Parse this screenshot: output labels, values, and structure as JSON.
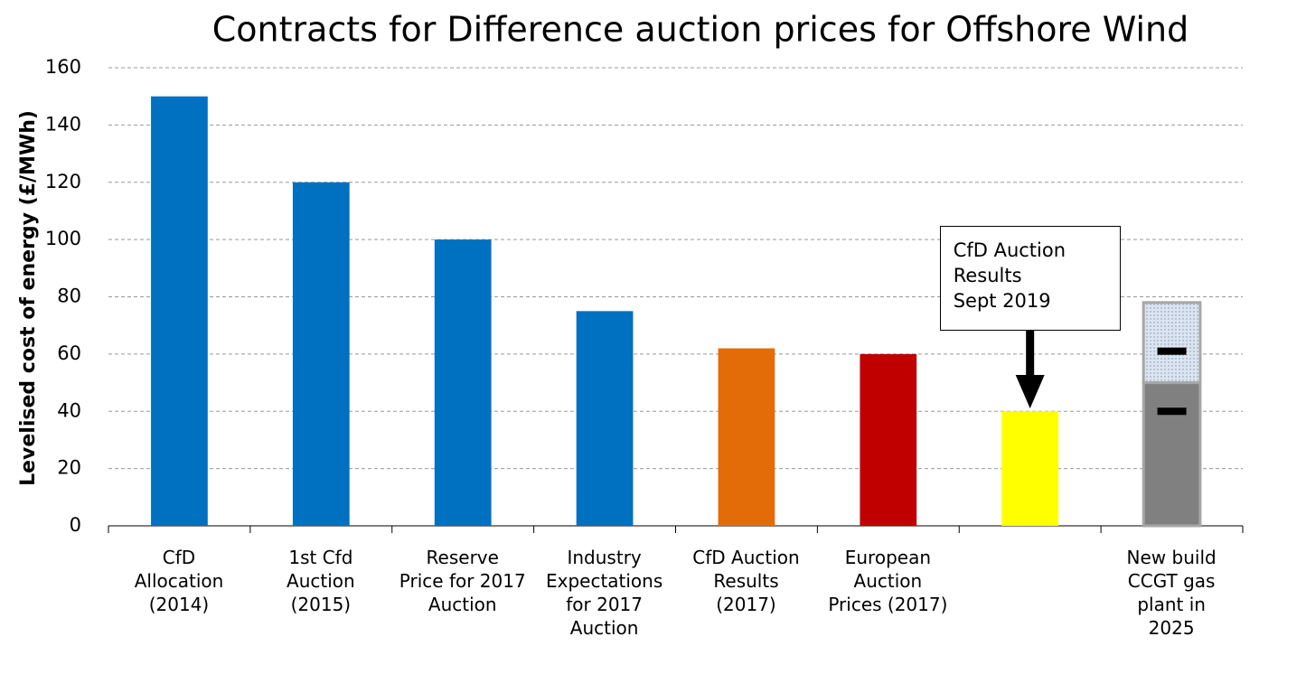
{
  "chart_data": {
    "type": "bar",
    "title": "Contracts for Difference auction prices for Offshore Wind",
    "y_label": "Levelised cost of energy (£/MWh)",
    "categories": [
      "CfD\nAllocation\n(2014)",
      "1st Cfd\nAuction\n(2015)",
      "Reserve\nPrice for 2017\nAuction",
      "Industry\nExpectations\nfor 2017\nAuction",
      "CfD Auction\nResults\n(2017)",
      "European\nAuction\nPrices (2017)",
      null,
      "New build\nCCGT gas\nplant in\n2025"
    ],
    "series": [
      {
        "colors": [
          "#0070c0",
          "#0070c0",
          "#0070c0",
          "#0070c0",
          "#e36c09",
          "#c00000",
          "#ffff00",
          "#808080"
        ],
        "values": [
          150,
          120,
          100,
          75,
          62,
          60,
          40,
          50
        ]
      },
      {
        "color": "#dbe5f1",
        "pattern": "dotted",
        "values": [
          null,
          null,
          null,
          null,
          null,
          null,
          null,
          28
        ]
      },
      {
        "type": "marker",
        "color": "#000000",
        "values": [
          null,
          null,
          null,
          null,
          null,
          null,
          null,
          40
        ]
      },
      {
        "type": "marker",
        "color": "#000000",
        "values": [
          null,
          null,
          null,
          null,
          null,
          null,
          null,
          61
        ]
      }
    ],
    "annotations": [
      {
        "text": "CfD Auction\nResults\nSept 2019",
        "category": 6
      }
    ],
    "ylim": [
      0,
      160
    ],
    "yticks": [
      0,
      20,
      40,
      60,
      80,
      100,
      120,
      140,
      160
    ],
    "grid": true
  }
}
